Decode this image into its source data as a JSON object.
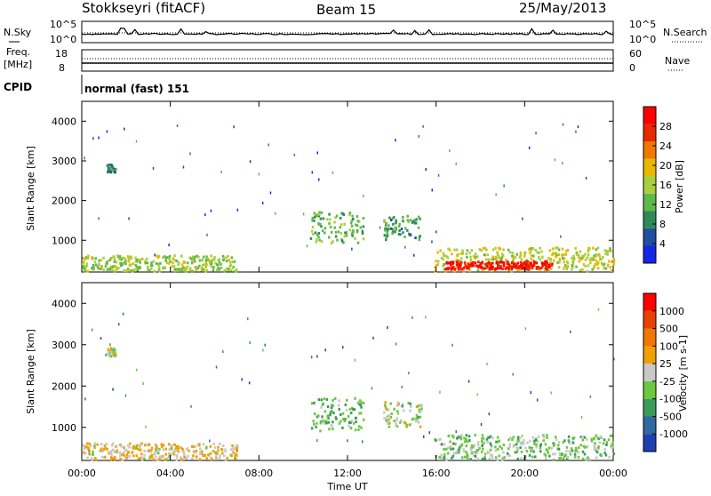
{
  "header": {
    "station": "Stokkseyri (fitACF)",
    "beam": "Beam 15",
    "date": "25/May/2013"
  },
  "noise_panel": {
    "left_label": "N.Sky",
    "right_label": "N.Search",
    "left_ticks": [
      "10^5",
      "10^0"
    ],
    "right_ticks": [
      "10^5",
      "10^0"
    ]
  },
  "freq_panel": {
    "left_label_1": "Freq.",
    "left_label_2": "[MHz]",
    "right_label": "Nave",
    "left_ticks": [
      "18",
      "8"
    ],
    "right_ticks": [
      "60",
      "0"
    ]
  },
  "cpid": {
    "label": "CPID",
    "mode": "normal (fast) 151"
  },
  "power_panel": {
    "ylabel": "Slant Range [km]",
    "yticks": [
      "4000",
      "3000",
      "2000",
      "1000"
    ],
    "colorbar_label": "Power [dB]",
    "colorbar_ticks": [
      "28",
      "24",
      "20",
      "16",
      "12",
      "8",
      "4"
    ],
    "colors": [
      "#1426e6",
      "#1f50a0",
      "#2f8a5a",
      "#5fb84a",
      "#a9cf3a",
      "#e8b800",
      "#f07800",
      "#e82a00",
      "#ff0000"
    ]
  },
  "velocity_panel": {
    "ylabel": "Slant Range [km]",
    "yticks": [
      "4000",
      "3000",
      "2000",
      "1000"
    ],
    "colorbar_label": "Velocity [m s-1]",
    "colorbar_ticks": [
      "1000",
      "500",
      "100",
      "25",
      "-25",
      "-100",
      "-500",
      "-1000"
    ],
    "colors": [
      "#1f3fb0",
      "#2f6aa0",
      "#3a9a5a",
      "#6cc840",
      "#c8c8c8",
      "#f0a000",
      "#f07800",
      "#e84000",
      "#ff0000"
    ]
  },
  "xaxis": {
    "title": "Time UT",
    "ticks": [
      "00:00",
      "04:00",
      "08:00",
      "12:00",
      "16:00",
      "20:00",
      "00:00"
    ]
  },
  "chart_data": [
    {
      "type": "heatmap",
      "title": "Power [dB]",
      "xlabel": "Time UT",
      "ylabel": "Slant Range [km]",
      "xlim": [
        0,
        24
      ],
      "ylim": [
        200,
        4500
      ],
      "clim": [
        0,
        30
      ],
      "regions": [
        {
          "t": [
            0,
            7
          ],
          "r": [
            200,
            600
          ],
          "value": 14
        },
        {
          "t": [
            1.1,
            1.5
          ],
          "r": [
            2700,
            2900
          ],
          "value": 8
        },
        {
          "t": [
            10.3,
            12.7
          ],
          "r": [
            900,
            1700
          ],
          "value": 12
        },
        {
          "t": [
            13.6,
            15.3
          ],
          "r": [
            1000,
            1600
          ],
          "value": 10
        },
        {
          "t": [
            15.9,
            24
          ],
          "r": [
            200,
            800
          ],
          "value": 16
        },
        {
          "t": [
            16.4,
            21.2
          ],
          "r": [
            250,
            450
          ],
          "value": 28
        }
      ]
    },
    {
      "type": "heatmap",
      "title": "Velocity [m s-1]",
      "xlabel": "Time UT",
      "ylabel": "Slant Range [km]",
      "xlim": [
        0,
        24
      ],
      "ylim": [
        200,
        4500
      ],
      "clim": [
        -1000,
        1000
      ],
      "regions": [
        {
          "t": [
            0,
            7
          ],
          "r": [
            200,
            600
          ],
          "value": 100
        },
        {
          "t": [
            1.1,
            1.5
          ],
          "r": [
            2700,
            2900
          ],
          "value": 0
        },
        {
          "t": [
            10.3,
            12.7
          ],
          "r": [
            900,
            1700
          ],
          "value": -300
        },
        {
          "t": [
            13.6,
            15.3
          ],
          "r": [
            1000,
            1600
          ],
          "value": -100
        },
        {
          "t": [
            15.9,
            24
          ],
          "r": [
            200,
            800
          ],
          "value": -200
        }
      ]
    }
  ]
}
